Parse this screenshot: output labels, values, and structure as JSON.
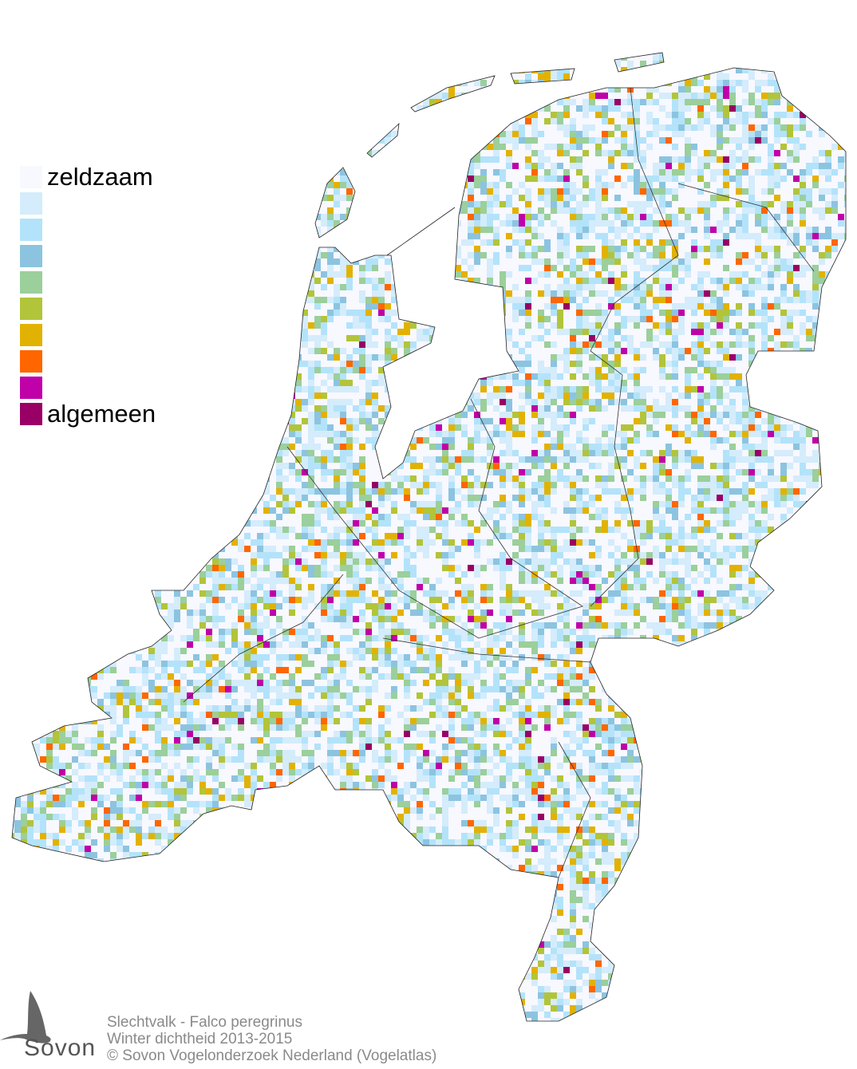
{
  "legend": {
    "low_label": "zeldzaam",
    "high_label": "algemeen",
    "colors": [
      "#f8f8ff",
      "#d4ecfb",
      "#b3e3fa",
      "#8cc4e0",
      "#9bcf9b",
      "#b2c43a",
      "#e2b203",
      "#ff6600",
      "#c000a8",
      "#990066"
    ]
  },
  "footer": {
    "line1": "Slechtvalk - Falco peregrinus",
    "line2": "Winter dichtheid 2013-2015",
    "line3": "© Sovon Vogelonderzoek Nederland (Vogelatlas)"
  },
  "logo": {
    "text": "Sovon",
    "icon": "swallow-icon"
  }
}
